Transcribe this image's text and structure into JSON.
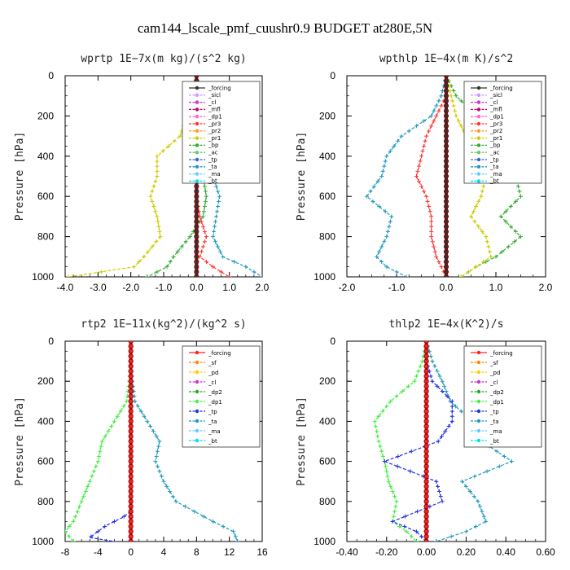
{
  "title": "cam144_lscale_pmf_cuushr0.9  BUDGET at280E,5N",
  "colors": {
    "forcing": "#333333",
    "sicl": "#cc99ff",
    "cl": "#cc33cc",
    "mfl": "#cc0066",
    "dp1": "#ff66cc",
    "pr3": "#ff3333",
    "pr2": "#ff9933",
    "pr1": "#cccc00",
    "bp": "#33aa33",
    "ac": "#66cc66",
    "tp": "#3366cc",
    "ta": "#2299bb",
    "ma": "#66ccff",
    "bt": "#00ddee",
    "red": "#ff2222",
    "sf": "#ff8800",
    "pd": "#ffcc00",
    "dp2": "#22aa22",
    "dp1b": "#44ee44",
    "tpb": "#2233dd",
    "yellow": "#ffcc00"
  },
  "chart_data": [
    {
      "type": "line",
      "title": "wprtp   1E−7x(m kg)/(s^2 kg)",
      "ylabel": "Pressure [hPa]",
      "xlim": [
        -4.0,
        2.0
      ],
      "ylim": [
        1000,
        0
      ],
      "xticks": [
        "-4.0",
        "-3.0",
        "-2.0",
        "-1.0",
        "0.0",
        "1.0",
        "2.0"
      ],
      "yticks": [
        "0",
        "200",
        "400",
        "600",
        "800",
        "1000"
      ],
      "legend": [
        "_forcing",
        "_sicl",
        "_cl",
        "_mfl",
        "_dp1",
        "_pr3",
        "_pr2",
        "_pr1",
        "_bp",
        "_ac",
        "_tp",
        "_ta",
        "_ma",
        "_bt"
      ],
      "series": [
        {
          "name": "_pr1",
          "color": "pr1",
          "y": [
            0,
            100,
            200,
            300,
            400,
            500,
            600,
            700,
            800,
            900,
            950,
            1000
          ],
          "x": [
            0,
            -0.1,
            -0.3,
            -0.5,
            -1.2,
            -1.2,
            -1.4,
            -1.2,
            -1.1,
            -1.6,
            -1.9,
            -3.9
          ]
        },
        {
          "name": "_bp",
          "color": "bp",
          "y": [
            0,
            100,
            200,
            300,
            400,
            500,
            600,
            700,
            800,
            900,
            950,
            1000
          ],
          "x": [
            0,
            0.05,
            0.1,
            0.1,
            0.2,
            0.2,
            0.3,
            0.2,
            -0.2,
            -0.7,
            -0.9,
            -1.5
          ]
        },
        {
          "name": "_pr3",
          "color": "pr3",
          "y": [
            0,
            100,
            200,
            300,
            400,
            500,
            600,
            700,
            800,
            900,
            950,
            1000
          ],
          "x": [
            0,
            0,
            0,
            0,
            0,
            0,
            0,
            0.1,
            0.3,
            0.1,
            0.5,
            1.0
          ]
        },
        {
          "name": "_ta",
          "color": "ta",
          "y": [
            0,
            100,
            200,
            300,
            400,
            500,
            600,
            700,
            800,
            900,
            950,
            1000
          ],
          "x": [
            0,
            0.1,
            0.2,
            0.3,
            0.4,
            0.5,
            0.7,
            0.6,
            0.5,
            0.8,
            1.5,
            2.0
          ]
        },
        {
          "name": "_forcing",
          "color": "forcing",
          "y": [
            0,
            1000
          ],
          "x": [
            0,
            0
          ]
        }
      ]
    },
    {
      "type": "line",
      "title": "wpthlp   1E−4x(m K)/s^2",
      "ylabel": "Pressure [hPa]",
      "xlim": [
        -2.0,
        2.0
      ],
      "ylim": [
        1000,
        0
      ],
      "xticks": [
        "-2.0",
        "-1.0",
        "0.0",
        "1.0",
        "2.0"
      ],
      "yticks": [
        "0",
        "200",
        "400",
        "600",
        "800",
        "1000"
      ],
      "legend": [
        "_forcing",
        "_sicl",
        "_cl",
        "_mfl",
        "_dp1",
        "_pr3",
        "_pr2",
        "_pr1",
        "_bp",
        "_ac",
        "_tp",
        "_ta",
        "_ma",
        "_bt"
      ],
      "series": [
        {
          "name": "_ta",
          "color": "ta",
          "y": [
            0,
            100,
            200,
            300,
            400,
            500,
            600,
            700,
            800,
            900,
            950,
            1000
          ],
          "x": [
            0,
            -0.1,
            -0.3,
            -0.9,
            -1.2,
            -1.3,
            -1.6,
            -1.1,
            -1.2,
            -1.4,
            -1.2,
            -0.8
          ]
        },
        {
          "name": "_pr3",
          "color": "pr3",
          "y": [
            0,
            100,
            200,
            300,
            400,
            500,
            600,
            700,
            800,
            900,
            950,
            1000
          ],
          "x": [
            0,
            0,
            -0.2,
            -0.4,
            -0.5,
            -0.6,
            -0.4,
            -0.3,
            -0.3,
            -0.2,
            -0.1,
            0
          ]
        },
        {
          "name": "_bp",
          "color": "bp",
          "y": [
            0,
            100,
            200,
            300,
            400,
            500,
            600,
            700,
            800,
            900,
            950,
            1000
          ],
          "x": [
            0,
            0.2,
            0.6,
            0.9,
            1.2,
            1.4,
            1.5,
            1.1,
            1.5,
            1.0,
            0.6,
            0.3
          ]
        },
        {
          "name": "_pr1",
          "color": "pr1",
          "y": [
            0,
            100,
            200,
            300,
            400,
            500,
            600,
            700,
            800,
            900,
            950,
            1000
          ],
          "x": [
            0,
            0.1,
            0.2,
            0.4,
            0.6,
            0.8,
            0.7,
            0.5,
            0.8,
            0.9,
            0.6,
            0.3
          ]
        },
        {
          "name": "_forcing",
          "color": "forcing",
          "y": [
            0,
            1000
          ],
          "x": [
            0,
            0
          ]
        }
      ]
    },
    {
      "type": "line",
      "title": "rtp2   1E−11x(kg^2)/(kg^2 s)",
      "ylabel": "Pressure [hPa]",
      "xlim": [
        -8,
        16
      ],
      "ylim": [
        1000,
        0
      ],
      "xticks": [
        "-8",
        "-4",
        "0",
        "4",
        "8",
        "12",
        "16"
      ],
      "yticks": [
        "0",
        "200",
        "400",
        "600",
        "800",
        "1000"
      ],
      "legend": [
        "_forcing",
        "_sf",
        "_pd",
        "_cl",
        "_dp2",
        "_dp1",
        "_tp",
        "_ta",
        "_ma",
        "_bt"
      ],
      "series": [
        {
          "name": "_dp1",
          "color": "dp1b",
          "y": [
            0,
            100,
            200,
            300,
            400,
            500,
            600,
            700,
            800,
            900,
            950,
            1000
          ],
          "x": [
            0,
            0,
            -0.2,
            -0.5,
            -2,
            -3.5,
            -4,
            -5,
            -6,
            -7,
            -8,
            -7
          ]
        },
        {
          "name": "_ta",
          "color": "ta",
          "y": [
            0,
            100,
            200,
            300,
            400,
            500,
            600,
            700,
            800,
            900,
            950,
            1000
          ],
          "x": [
            0,
            0,
            0.2,
            0.5,
            2,
            3.5,
            3,
            4,
            5.5,
            10,
            12.5,
            13
          ]
        },
        {
          "name": "_tp",
          "color": "tpb",
          "y": [
            850,
            880,
            900,
            920,
            950,
            980,
            1000
          ],
          "x": [
            0,
            -1,
            -2,
            -3,
            -4,
            -5,
            -2
          ]
        },
        {
          "name": "_forcing",
          "color": "red",
          "y": [
            0,
            1000
          ],
          "x": [
            0,
            0
          ]
        }
      ]
    },
    {
      "type": "line",
      "title": "thlp2   1E−4x(K^2)/s",
      "ylabel": "Pressure [hPa]",
      "xlim": [
        -0.4,
        0.6
      ],
      "ylim": [
        1000,
        0
      ],
      "xticks": [
        "-0.40",
        "-0.20",
        "0.00",
        "0.20",
        "0.40",
        "0.60"
      ],
      "yticks": [
        "0",
        "200",
        "400",
        "600",
        "800",
        "1000"
      ],
      "legend": [
        "_forcing",
        "_sf",
        "_pd",
        "_cl",
        "_dp2",
        "_dp1",
        "_tp",
        "_ta",
        "_ma",
        "_bt"
      ],
      "series": [
        {
          "name": "_dp1",
          "color": "dp1b",
          "y": [
            0,
            100,
            200,
            300,
            400,
            500,
            600,
            700,
            800,
            900,
            950,
            1000
          ],
          "x": [
            0,
            -0.02,
            -0.06,
            -0.18,
            -0.26,
            -0.24,
            -0.21,
            -0.19,
            -0.15,
            -0.17,
            -0.1,
            -0.05
          ]
        },
        {
          "name": "_ta",
          "color": "ta",
          "y": [
            0,
            100,
            200,
            300,
            400,
            500,
            600,
            700,
            800,
            900,
            950,
            1000
          ],
          "x": [
            0,
            0.03,
            0.08,
            0.12,
            0.23,
            0.28,
            0.43,
            0.18,
            0.26,
            0.3,
            0.2,
            0.05
          ]
        },
        {
          "name": "_tp",
          "color": "tpb",
          "y": [
            0,
            100,
            200,
            300,
            400,
            500,
            600,
            700,
            800,
            900,
            950,
            1000
          ],
          "x": [
            0,
            0,
            0.03,
            0.13,
            0.13,
            0.06,
            -0.21,
            0.05,
            0.08,
            -0.17,
            -0.05,
            0
          ]
        },
        {
          "name": "_forcing",
          "color": "red",
          "y": [
            0,
            1000
          ],
          "x": [
            0,
            0
          ]
        }
      ]
    }
  ]
}
